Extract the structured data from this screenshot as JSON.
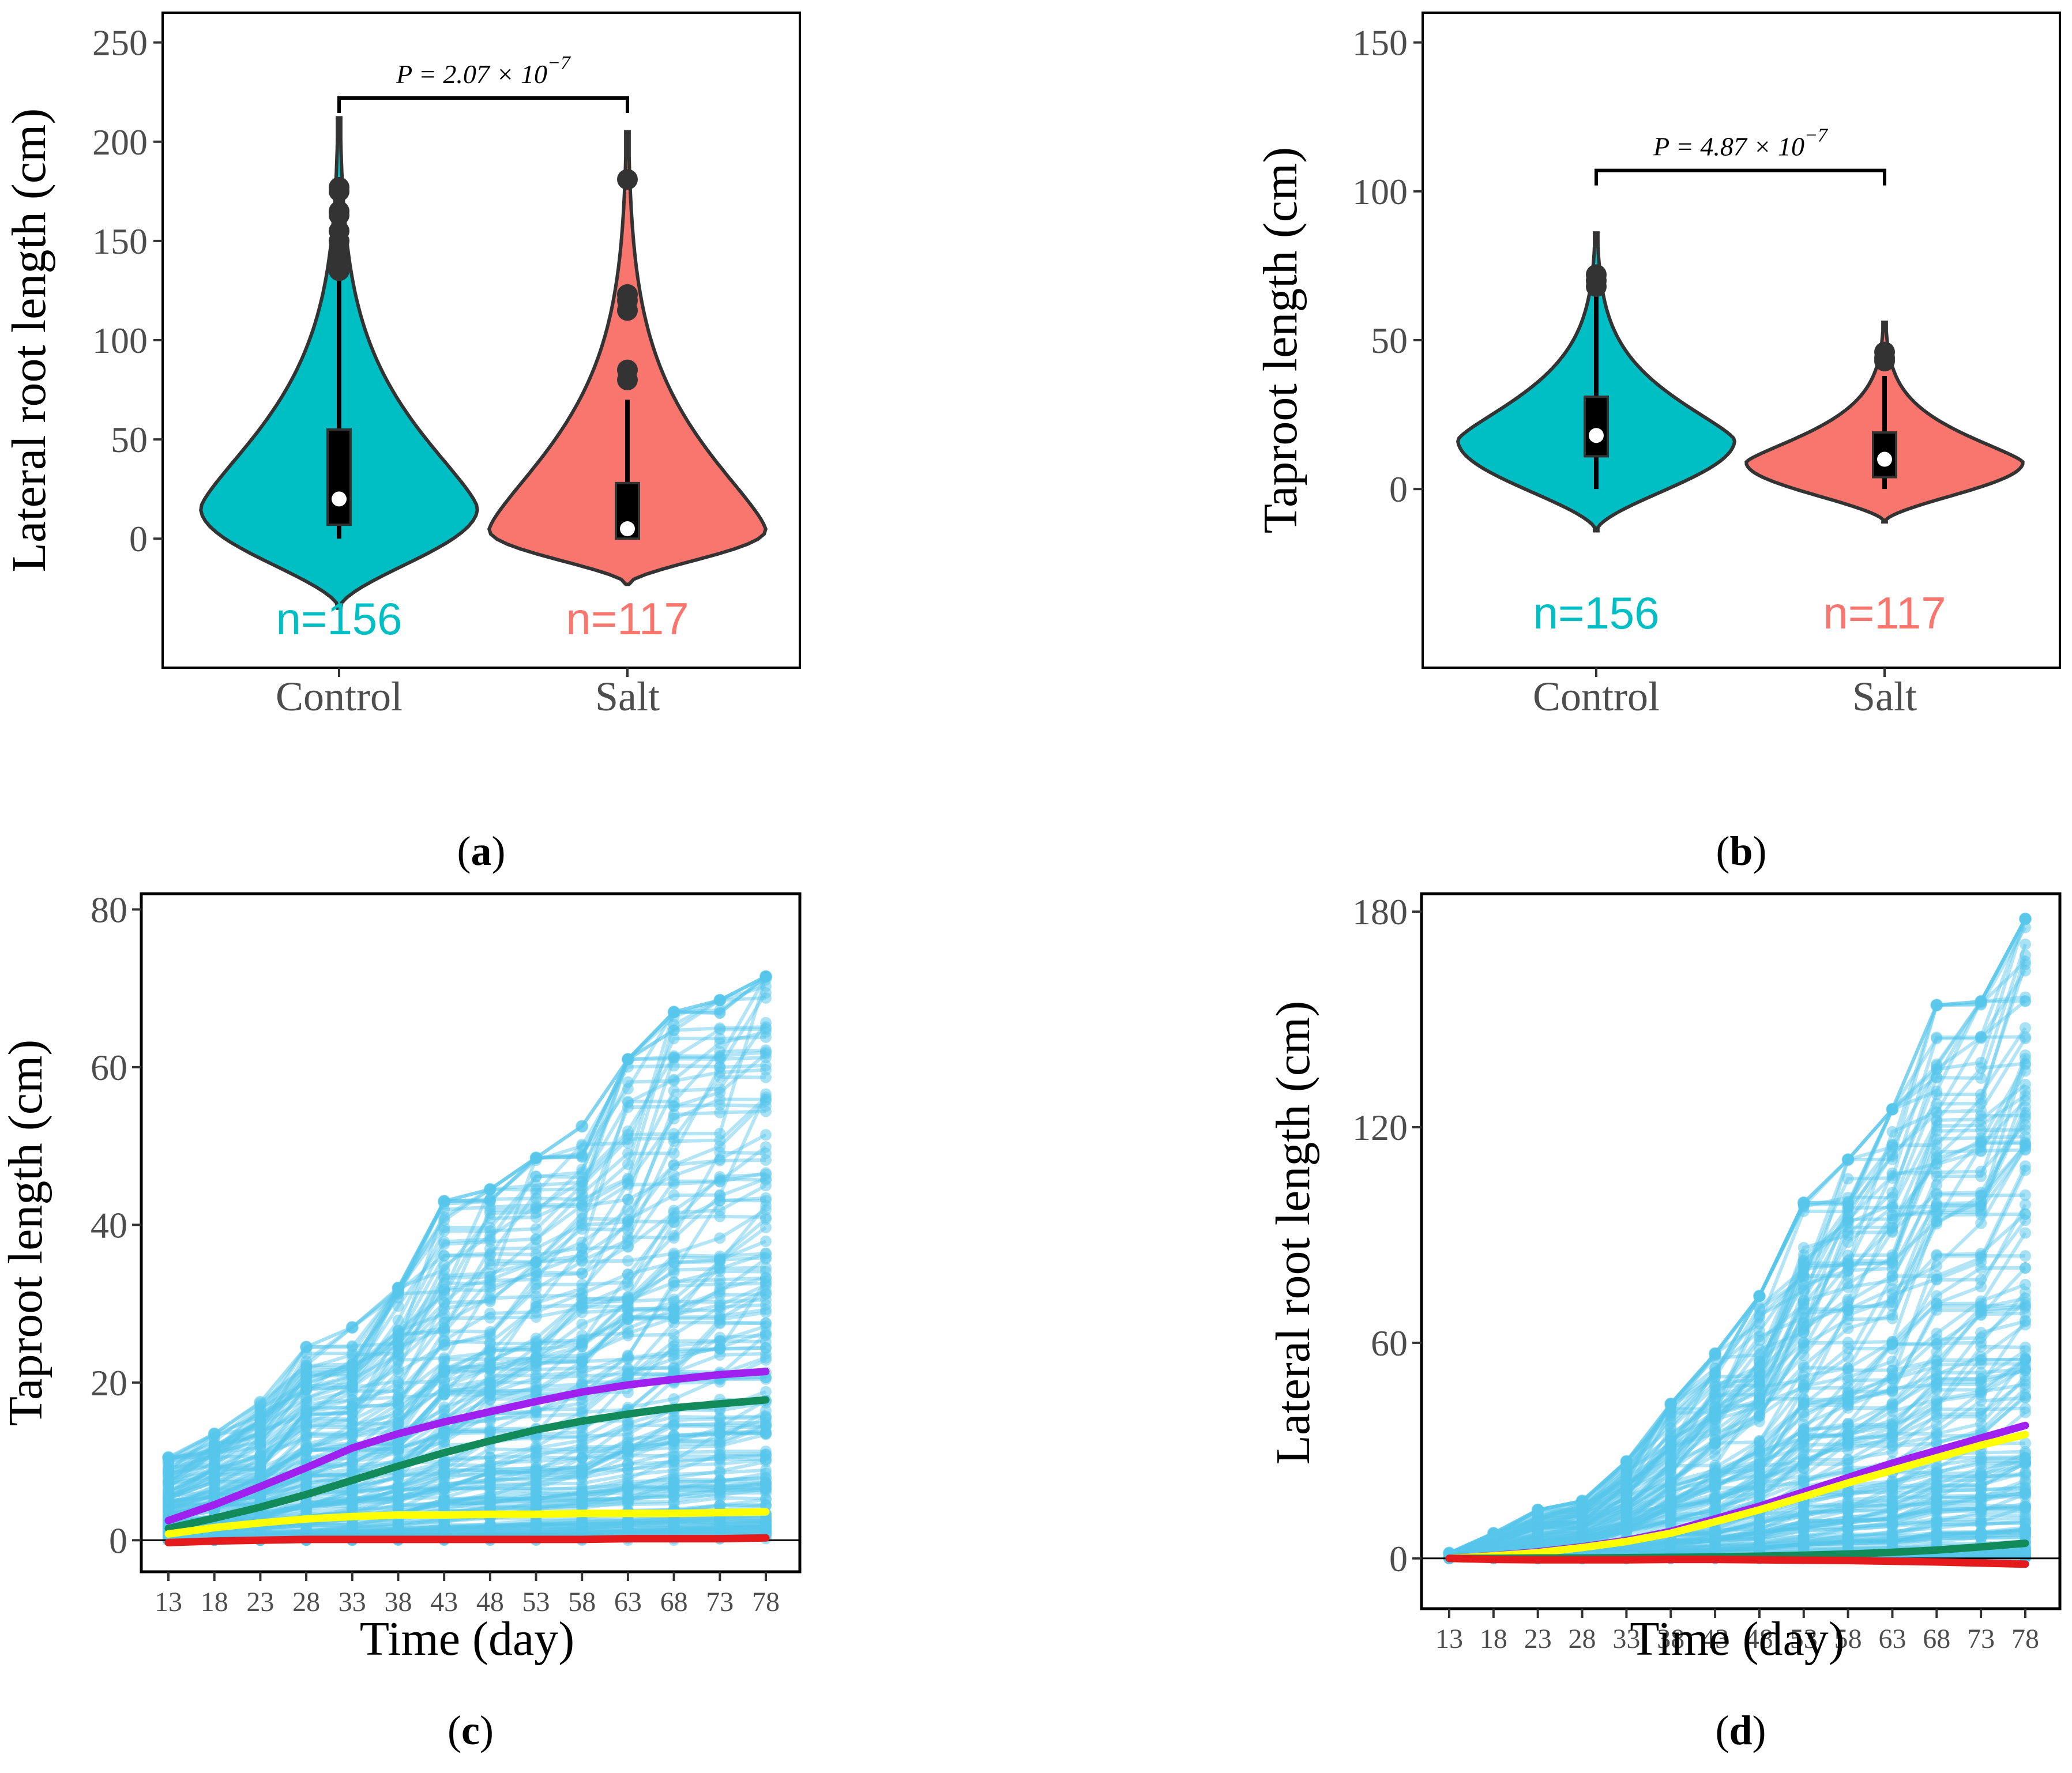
{
  "chart_data": [
    {
      "panel": "(a)",
      "panel_letter": "a",
      "type": "violin",
      "ylabel": "Lateral root length (cm)",
      "yticks": [
        0,
        50,
        100,
        150,
        200,
        250
      ],
      "ylim": [
        -65,
        265
      ],
      "categories": [
        "Control",
        "Salt"
      ],
      "groups": [
        {
          "name": "Control",
          "n_label": "n=156",
          "color": "#00BFC4",
          "min": 0,
          "q1": 7,
          "median": 20,
          "q3": 55,
          "whisker_low": 0,
          "whisker_high": 130,
          "violin_range": [
            -35,
            212
          ],
          "outliers": [
            135,
            140,
            145,
            150,
            155,
            163,
            165,
            175,
            177
          ]
        },
        {
          "name": "Salt",
          "n_label": "n=117",
          "color": "#F8766D",
          "min": 0,
          "q1": 0,
          "median": 5,
          "q3": 28,
          "whisker_low": 0,
          "whisker_high": 70,
          "violin_range": [
            -23,
            205
          ],
          "outliers": [
            80,
            85,
            115,
            120,
            123,
            181
          ]
        }
      ],
      "annotation": {
        "text_main": "P = 2.07 × 10",
        "exponent": "−7",
        "between": [
          "Control",
          "Salt"
        ],
        "bracket_y": 222
      }
    },
    {
      "panel": "(b)",
      "panel_letter": "b",
      "type": "violin",
      "ylabel": "Taproot length (cm)",
      "yticks": [
        0,
        50,
        100,
        150
      ],
      "ylim": [
        -60,
        160
      ],
      "categories": [
        "Control",
        "Salt"
      ],
      "groups": [
        {
          "name": "Control",
          "n_label": "n=156",
          "color": "#00BFC4",
          "min": 0,
          "q1": 11,
          "median": 18,
          "q3": 31,
          "whisker_low": 0,
          "whisker_high": 65,
          "violin_range": [
            -14,
            86
          ],
          "outliers": [
            68,
            70,
            72
          ]
        },
        {
          "name": "Salt",
          "n_label": "n=117",
          "color": "#F8766D",
          "min": 0,
          "q1": 4,
          "median": 10,
          "q3": 19,
          "whisker_low": 0,
          "whisker_high": 38,
          "violin_range": [
            -11,
            56
          ],
          "outliers": [
            43,
            44,
            46
          ]
        }
      ],
      "annotation": {
        "text_main": "P = 4.87 × 10",
        "exponent": "−7",
        "between": [
          "Control",
          "Salt"
        ],
        "bracket_y": 107
      }
    },
    {
      "panel": "(c)",
      "panel_letter": "c",
      "type": "line",
      "xlabel": "Time (day)",
      "ylabel": "Taproot length (cm)",
      "x": [
        13,
        18,
        23,
        28,
        33,
        38,
        43,
        48,
        53,
        58,
        63,
        68,
        73,
        78
      ],
      "yticks": [
        0,
        20,
        40,
        60,
        80
      ],
      "ylim": [
        -4,
        82
      ],
      "individual_color": "#56C6EB",
      "individual_count": 160,
      "upper_envelope": [
        10.5,
        13.5,
        17.5,
        24.5,
        27,
        32,
        43,
        44.5,
        48.5,
        52.5,
        61,
        67,
        68.5,
        71.5
      ],
      "series": [
        {
          "name": "purple",
          "color": "#A020F0",
          "values": [
            2.5,
            4.5,
            6.8,
            9.2,
            11.7,
            13.5,
            15,
            16.3,
            17.6,
            18.8,
            19.7,
            20.4,
            21,
            21.4
          ]
        },
        {
          "name": "green",
          "color": "#138A5A",
          "values": [
            1.5,
            2.8,
            4.2,
            5.8,
            7.6,
            9.4,
            11.1,
            12.6,
            14,
            15.1,
            16,
            16.8,
            17.3,
            17.8
          ]
        },
        {
          "name": "yellow",
          "color": "#FFFF00",
          "values": [
            0.8,
            1.6,
            2.2,
            2.7,
            3,
            3.2,
            3.2,
            3.3,
            3.3,
            3.4,
            3.4,
            3.4,
            3.5,
            3.6
          ]
        },
        {
          "name": "red",
          "color": "#E41A1C",
          "values": [
            -0.3,
            -0.1,
            0,
            0.1,
            0.1,
            0.1,
            0.1,
            0.1,
            0.1,
            0.1,
            0.2,
            0.2,
            0.2,
            0.3
          ]
        }
      ]
    },
    {
      "panel": "(d)",
      "panel_letter": "d",
      "type": "line",
      "xlabel": "Time (day)",
      "ylabel": "Lateral root length (cm)",
      "x": [
        13,
        18,
        23,
        28,
        33,
        38,
        43,
        48,
        53,
        58,
        63,
        68,
        73,
        78
      ],
      "yticks": [
        0,
        60,
        120,
        180
      ],
      "ylim": [
        -14,
        185
      ],
      "individual_color": "#56C6EB",
      "individual_count": 160,
      "upper_envelope": [
        1.5,
        7,
        13.5,
        16,
        27,
        43,
        57,
        73,
        99,
        111,
        125,
        154,
        155,
        178
      ],
      "series": [
        {
          "name": "purple",
          "color": "#A020F0",
          "values": [
            0,
            0.8,
            1.8,
            3.2,
            5,
            7.5,
            11,
            14.5,
            18.5,
            22.5,
            26.5,
            30,
            33.5,
            37
          ]
        },
        {
          "name": "yellow",
          "color": "#FFFF00",
          "values": [
            0,
            0.7,
            1.6,
            3,
            4.7,
            7,
            10.2,
            13.5,
            17.2,
            21,
            24.5,
            28,
            31.5,
            34.5
          ]
        },
        {
          "name": "green",
          "color": "#138A5A",
          "values": [
            0,
            0,
            0.1,
            0.1,
            0.2,
            0.3,
            0.4,
            0.6,
            0.9,
            1.2,
            1.7,
            2.3,
            3.2,
            4.2
          ]
        },
        {
          "name": "red",
          "color": "#E41A1C",
          "values": [
            0,
            -0.3,
            -0.4,
            -0.4,
            -0.4,
            -0.3,
            -0.3,
            -0.4,
            -0.5,
            -0.6,
            -0.8,
            -1,
            -1.3,
            -1.6
          ]
        }
      ]
    }
  ]
}
